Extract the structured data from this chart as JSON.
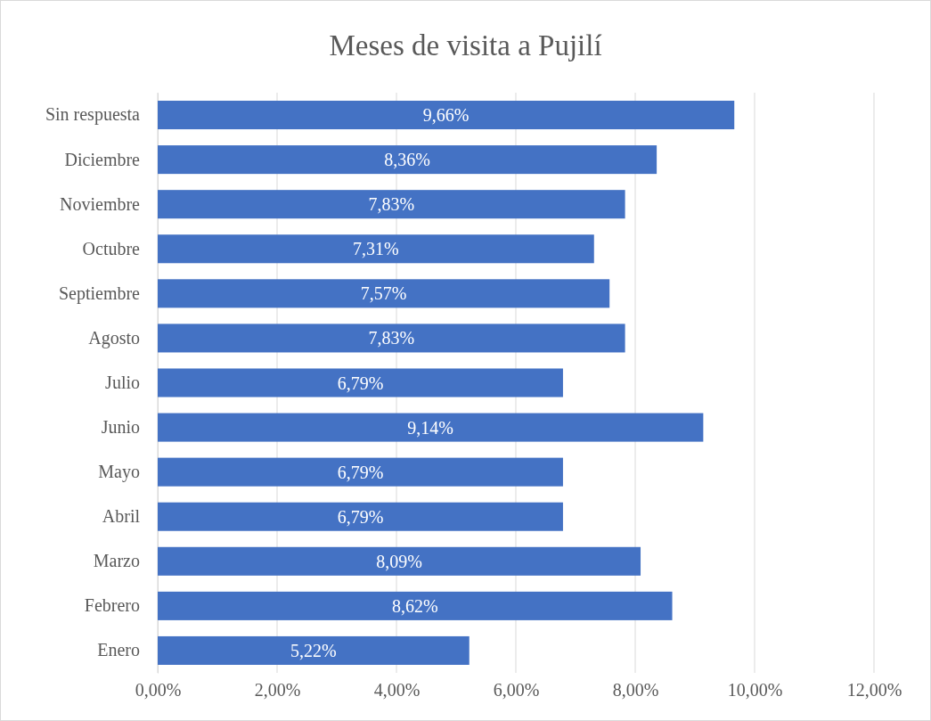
{
  "chart_data": {
    "type": "bar",
    "orientation": "horizontal",
    "title": "Meses de visita a Pujilí",
    "categories": [
      "Sin respuesta",
      "Diciembre",
      "Noviembre",
      "Octubre",
      "Septiembre",
      "Agosto",
      "Julio",
      "Junio",
      "Mayo",
      "Abril",
      "Marzo",
      "Febrero",
      "Enero"
    ],
    "values": [
      9.66,
      8.36,
      7.83,
      7.31,
      7.57,
      7.83,
      6.79,
      9.14,
      6.79,
      6.79,
      8.09,
      8.62,
      5.22
    ],
    "value_labels": [
      "9,66%",
      "8,36%",
      "7,83%",
      "7,31%",
      "7,57%",
      "7,83%",
      "6,79%",
      "9,14%",
      "6,79%",
      "6,79%",
      "8,09%",
      "8,62%",
      "5,22%"
    ],
    "color": "#4472c4",
    "xlim": [
      0,
      12
    ],
    "xticks": [
      {
        "value": 0,
        "label": "0,00%"
      },
      {
        "value": 2,
        "label": "2,00%"
      },
      {
        "value": 4,
        "label": "4,00%"
      },
      {
        "value": 6,
        "label": "6,00%"
      },
      {
        "value": 8,
        "label": "8,00%"
      },
      {
        "value": 10,
        "label": "10,00%"
      },
      {
        "value": 12,
        "label": "12,00%"
      }
    ],
    "grid": "x"
  }
}
